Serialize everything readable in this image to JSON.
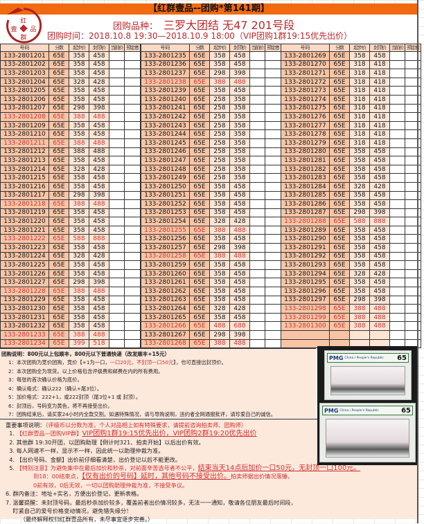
{
  "title": "【红群壹品--团购*第141期】",
  "logo_text": "红壹品群",
  "product_label": "团购品种：",
  "product": "三罗大团结 无47 201号段",
  "time": "团购时间：2018.10.8 19:30—2018.10.9 18:00（VIP团购1群19:15优先出价）",
  "colors": {
    "brand_orange": "#f26a10",
    "highlight_red": "#d0302f",
    "number_cell": "#f7c5a6",
    "price_cell": "#fde5d5"
  },
  "columns": [
    "号码",
    "分数",
    "起步价",
    "封顶价",
    "当前价",
    "预定者"
  ],
  "tables": [
    [
      [
        "133-2801201",
        "65E",
        "358",
        "458",
        false
      ],
      [
        "133-2801202",
        "65E",
        "358",
        "458",
        false
      ],
      [
        "133-2801203",
        "65E",
        "358",
        "458",
        false
      ],
      [
        "133-2801204",
        "65E",
        "328",
        "428",
        false
      ],
      [
        "133-2801205",
        "65E",
        "358",
        "458",
        false
      ],
      [
        "133-2801206",
        "65E",
        "358",
        "458",
        false
      ],
      [
        "133-2801207",
        "65E",
        "298",
        "398",
        false
      ],
      [
        "133-2801208",
        "65E",
        "388",
        "488",
        true
      ],
      [
        "133-2801209",
        "65E",
        "358",
        "458",
        false
      ],
      [
        "133-2801210",
        "65E",
        "358",
        "458",
        false
      ],
      [
        "133-2801211",
        "65E",
        "388",
        "488",
        true
      ],
      [
        "133-2801212",
        "65E",
        "388",
        "488",
        false
      ],
      [
        "133-2801213",
        "65E",
        "358",
        "458",
        false
      ],
      [
        "133-2801214",
        "65E",
        "328",
        "428",
        false
      ],
      [
        "133-2801215",
        "65E",
        "358",
        "458",
        false
      ],
      [
        "133-2801216",
        "65E",
        "358",
        "458",
        false
      ],
      [
        "133-2801217",
        "65E",
        "298",
        "398",
        false
      ],
      [
        "133-2801218",
        "65E",
        "388",
        "488",
        true
      ],
      [
        "133-2801219",
        "65E",
        "358",
        "458",
        false
      ],
      [
        "133-2801220",
        "65E",
        "358",
        "458",
        false
      ],
      [
        "133-2801221",
        "65E",
        "358",
        "458",
        false
      ],
      [
        "133-2801222",
        "65E",
        "588",
        "888",
        true
      ],
      [
        "133-2801223",
        "65E",
        "358",
        "458",
        false
      ],
      [
        "133-2801224",
        "65E",
        "328",
        "428",
        false
      ],
      [
        "133-2801225",
        "65E",
        "358",
        "458",
        false
      ],
      [
        "133-2801226",
        "65E",
        "358",
        "458",
        false
      ],
      [
        "133-2801227",
        "65E",
        "298",
        "398",
        false
      ],
      [
        "133-2801228",
        "65E",
        "388",
        "488",
        true
      ],
      [
        "133-2801229",
        "65E",
        "358",
        "458",
        false
      ],
      [
        "133-2801230",
        "65E",
        "358",
        "458",
        false
      ],
      [
        "133-2801231",
        "65E",
        "358",
        "458",
        false
      ],
      [
        "133-2801232",
        "65E",
        "358",
        "458",
        false
      ],
      [
        "133-2801233",
        "65E",
        "388",
        "488",
        true
      ],
      [
        "133-2801234",
        "65E",
        "399",
        "518",
        true
      ]
    ],
    [
      [
        "133-2801235",
        "65E",
        "358",
        "458",
        false
      ],
      [
        "133-2801236",
        "65E",
        "358",
        "458",
        false
      ],
      [
        "133-2801237",
        "65E",
        "298",
        "398",
        false
      ],
      [
        "133-2801238",
        "65E",
        "388",
        "488",
        true
      ],
      [
        "133-2801239",
        "65E",
        "358",
        "458",
        false
      ],
      [
        "133-2801240",
        "65E",
        "258",
        "358",
        false
      ],
      [
        "133-2801241",
        "65E",
        "258",
        "358",
        false
      ],
      [
        "133-2801242",
        "65E",
        "258",
        "358",
        false
      ],
      [
        "133-2801243",
        "65E",
        "258",
        "358",
        false
      ],
      [
        "133-2801244",
        "65E",
        "258",
        "358",
        false
      ],
      [
        "133-2801245",
        "65E",
        "258",
        "358",
        false
      ],
      [
        "133-2801246",
        "65E",
        "258",
        "358",
        false
      ],
      [
        "133-2801247",
        "65E",
        "258",
        "358",
        false
      ],
      [
        "133-2801248",
        "65E",
        "258",
        "358",
        false
      ],
      [
        "133-2801249",
        "65E",
        "258",
        "358",
        false
      ],
      [
        "133-2801250",
        "65E",
        "358",
        "458",
        false
      ],
      [
        "133-2801251",
        "65E",
        "358",
        "458",
        false
      ],
      [
        "133-2801252",
        "65E",
        "358",
        "458",
        false
      ],
      [
        "133-2801253",
        "65E",
        "358",
        "458",
        false
      ],
      [
        "133-2801254",
        "65E",
        "328",
        "428",
        false
      ],
      [
        "133-2801255",
        "65E",
        "388",
        "488",
        true
      ],
      [
        "133-2801256",
        "65E",
        "358",
        "458",
        false
      ],
      [
        "133-2801257",
        "65E",
        "298",
        "398",
        false
      ],
      [
        "133-2801258",
        "65E",
        "388",
        "488",
        true
      ],
      [
        "133-2801259",
        "65E",
        "358",
        "458",
        false
      ],
      [
        "133-2801260",
        "65E",
        "358",
        "458",
        false
      ],
      [
        "133-2801261",
        "65E",
        "358",
        "458",
        false
      ],
      [
        "133-2801262",
        "65E",
        "358",
        "458",
        false
      ],
      [
        "133-2801263",
        "65E",
        "358",
        "458",
        false
      ],
      [
        "133-2801264",
        "65E",
        "328",
        "428",
        false
      ],
      [
        "133-2801265",
        "65E",
        "358",
        "458",
        false
      ],
      [
        "133-2801266",
        "65E",
        "488",
        "688",
        true
      ],
      [
        "133-2801267",
        "65E",
        "298",
        "398",
        false
      ],
      [
        "133-2801268",
        "65E",
        "388",
        "488",
        true
      ]
    ],
    [
      [
        "133-2801269",
        "65E",
        "358",
        "458",
        false
      ],
      [
        "133-2801270",
        "65E",
        "318",
        "418",
        false
      ],
      [
        "133-2801271",
        "65E",
        "318",
        "418",
        false
      ],
      [
        "133-2801272",
        "65E",
        "318",
        "418",
        false
      ],
      [
        "133-2801273",
        "65E",
        "318",
        "418",
        false
      ],
      [
        "133-2801274",
        "65E",
        "318",
        "418",
        false
      ],
      [
        "133-2801275",
        "65E",
        "318",
        "418",
        false
      ],
      [
        "133-2801276",
        "65E",
        "318",
        "418",
        false
      ],
      [
        "133-2801277",
        "65E",
        "318",
        "418",
        false
      ],
      [
        "133-2801278",
        "65E",
        "318",
        "418",
        false
      ],
      [
        "133-2801279",
        "65E",
        "318",
        "418",
        false
      ],
      [
        "133-2801280",
        "65E",
        "358",
        "458",
        false
      ],
      [
        "133-2801281",
        "65E",
        "358",
        "458",
        false
      ],
      [
        "133-2801282",
        "65E",
        "358",
        "458",
        false
      ],
      [
        "133-2801283",
        "65E",
        "358",
        "458",
        false
      ],
      [
        "133-2801284",
        "65E",
        "328",
        "428",
        false
      ],
      [
        "133-2801285",
        "65E",
        "358",
        "458",
        false
      ],
      [
        "133-2801286",
        "65E",
        "358",
        "458",
        false
      ],
      [
        "133-2801287",
        "65E",
        "298",
        "398",
        false
      ],
      [
        "133-2801288",
        "65E",
        "588",
        "888",
        true
      ],
      [
        "133-2801289",
        "65E",
        "358",
        "458",
        false
      ],
      [
        "133-2801290",
        "65E",
        "358",
        "458",
        false
      ],
      [
        "133-2801291",
        "65E",
        "358",
        "458",
        false
      ],
      [
        "133-2801292",
        "65E",
        "358",
        "458",
        false
      ],
      [
        "133-2801293",
        "65E",
        "358",
        "458",
        false
      ],
      [
        "133-2801294",
        "65E",
        "328",
        "428",
        false
      ],
      [
        "133-2801295",
        "65E",
        "358",
        "458",
        false
      ],
      [
        "133-2801296",
        "65E",
        "358",
        "458",
        false
      ],
      [
        "133-2801297",
        "65E",
        "298",
        "398",
        false
      ],
      [
        "133-2801298",
        "65E",
        "388",
        "488",
        true
      ],
      [
        "133-2801299",
        "65E",
        "388",
        "488",
        true
      ],
      [
        "133-2801300",
        "65E",
        "388",
        "488",
        true
      ],
      [
        "",
        "",
        "",
        "",
        false
      ],
      [
        "",
        "",
        "",
        "",
        false
      ]
    ]
  ],
  "notes": {
    "heading": "团购说明：800元以上包顺丰，800元以下普通快递（改发顺丰+15元）",
    "items": [
      [
        {
          "t": "1：本次团购为竞价团购，竞价【+1为一口，"
        },
        {
          "t": "一口20元，不封顶一口50元",
          "red": true
        },
        {
          "t": "】，也可直接出封顶价。"
        }
      ],
      [
        {
          "t": "2：本次团购全为现货。以上价格包含评级费和邮费在内的所有费用。"
        }
      ],
      [
        {
          "t": "3：每张的首次确认价格为底价。"
        }
      ],
      [
        {
          "t": "4：确认格式：确认222（确认+尾3位）。"
        }
      ],
      [
        {
          "t": "5：加价格式：222+1，或222封顶（尾3位+1 或 封顶）。"
        }
      ],
      [
        {
          "t": "6：封顶后，号码变为黄色，将不再接受出价。"
        }
      ],
      [
        {
          "t": "7：团购结束后，请买家24小时内全款交割。如遇特殊情况，请与导购说明，违约者全网通报批评，请珍爱自己的诚信。"
        }
      ]
    ]
  },
  "photo": {
    "grader": "PMG",
    "grade": "65",
    "label": "China / People's Republic"
  },
  "important": {
    "rows": [
      {
        "indent": false,
        "segs": [
          {
            "t": "重要事项说明："
          },
          {
            "t": "（评级币以分数为准，个人对品相上如有特殊要求，请提前咨询拍卖师、团购师）",
            "red": true
          }
        ]
      },
      {
        "indent": false,
        "segs": [
          {
            "t": "  1. "
          },
          {
            "t": "【红群壹品—团购VIP群】",
            "red": true
          },
          {
            "t": "VIP团购1群19:15优先出价，VIP团购2群19:20优先出价",
            "red": true,
            "u": true,
            "big": true
          }
        ]
      },
      {
        "indent": false,
        "segs": [
          {
            "t": "  2. 其他群 19:30开团，以团购助理【倒计时321、拍卖开始】以后出价有效。"
          }
        ]
      },
      {
        "indent": false,
        "segs": [
          {
            "t": "  3. 每人网速不一样，显示不一样，因此统一以助理仲裁为准。"
          }
        ]
      },
      {
        "indent": false,
        "segs": [
          {
            "t": "  4. 【出价号码、金额】出价前仔细看清楚，出价登记以后不能更改。"
          }
        ]
      },
      {
        "indent": false,
        "segs": [
          {
            "t": "  5. "
          },
          {
            "t": "【特别注意】为避免集中在最后加价和秒杀，对前面辛苦选号者不公平，",
            "red": true
          },
          {
            "t": "结束当天14点后加价一口50元，无封顶一口100元。",
            "red": true,
            "u": true,
            "big": true
          }
        ]
      },
      {
        "indent": true,
        "segs": [
          {
            "t": "到18：00结束点，",
            "red": true
          },
          {
            "t": "【仅有出价的号码】延时，其他号码不接受出价。",
            "red": true,
            "u": true,
            "big": true
          },
          {
            "t": "拍卖师据出价情况落锤，",
            "red": true
          }
        ]
      },
      {
        "indent": true,
        "segs": [
          {
            "t": "0前有效，0后无效，一切以团购助理仲裁为准，不接受争议。",
            "red": true
          }
        ]
      },
      {
        "indent": false,
        "segs": [
          {
            "t": "6. 群内备注：地址+实名，方便出价登记，更新表格。"
          }
        ]
      },
      {
        "indent": false,
        "segs": [
          {
            "t": "7. 温馨提醒：未封顶号码，最后秒杀加价较多，覆盖前者出价情况较多，无法一一通知，敬请各位朋友最后时间段，"
          }
        ]
      },
      {
        "indent": false,
        "segs": [
          {
            "t": "    盯紧自己的爱号价格变动情况，避免错失缘分！"
          }
        ]
      },
      {
        "indent": false,
        "segs": [
          {
            "t": "        （最终解释权归红群壹品所有，未尽事宜逐步完善。）"
          }
        ]
      }
    ]
  }
}
